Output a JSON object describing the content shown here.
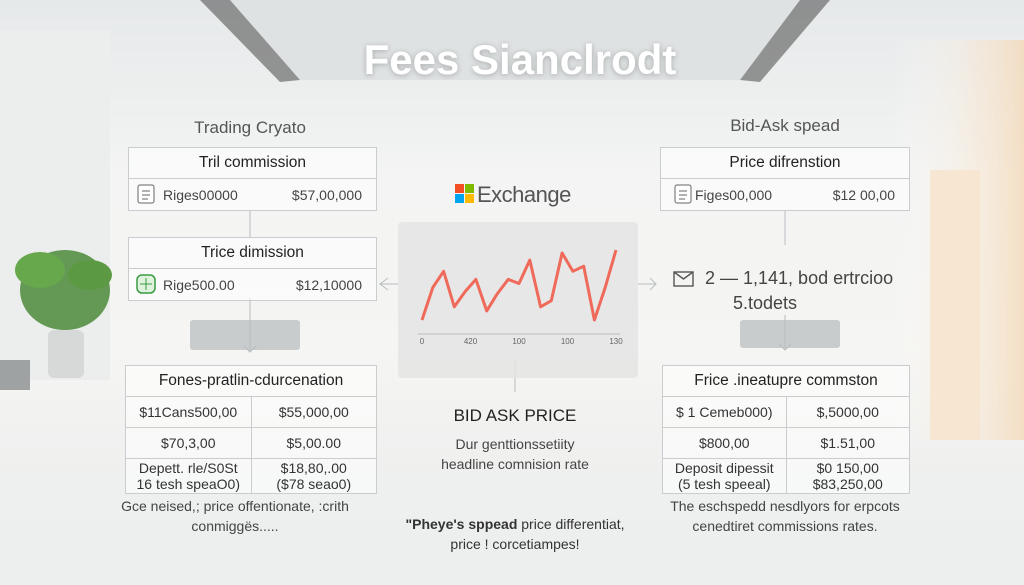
{
  "header": {
    "title": "Fees Sianclrodt"
  },
  "left": {
    "heading": "Trading Cryato",
    "box1": {
      "header": "Tril commission",
      "row": [
        "Riges00000",
        "$57,00,000"
      ]
    },
    "box2": {
      "header": "Trice dimission",
      "row": [
        "Rige500.00",
        "$12,10000"
      ]
    },
    "box3": {
      "header": "Fones-pratlin-cdurcenation",
      "rows": [
        [
          "$11Cans500,00",
          "$55,000,00"
        ],
        [
          "$70,3,00",
          "$5,00.00"
        ],
        [
          "Depett. rle/S0St\n16 tesh speaO0)",
          "$18,80,.00\n($78 seao0)"
        ]
      ]
    },
    "footer": "Gce neised,; price offentionate, :crith\nconmiggës....."
  },
  "center": {
    "logo": "Exchange",
    "chart": {
      "type": "line",
      "color": "#ef6a5a",
      "xticks": [
        "0",
        "420",
        "100",
        "100",
        "130"
      ],
      "values": [
        12,
        44,
        60,
        25,
        40,
        52,
        21,
        38,
        52,
        48,
        71,
        25,
        31,
        78,
        60,
        65,
        12,
        44,
        81
      ]
    },
    "heading": "BID ASK PRICE",
    "subtitle": "Dur genttionssetiity\nheadline comnision rate",
    "quote_bold": "\"Pheye's sppead",
    "quote_rest": " price differentiat,\nprice ! corcetiampes!"
  },
  "right": {
    "heading": "Bid-Ask spead",
    "box1": {
      "header": "Price difrenstion",
      "row": [
        "Figes00,000",
        "$12 00,00"
      ]
    },
    "note_line1": "2 — 1,141, bod ertrcioo",
    "note_line2": "5.todets",
    "box3": {
      "header": "Frice .ineatupre commston",
      "rows": [
        [
          "$ 1 Cemeb000)",
          "$,5000,00"
        ],
        [
          "$800,00",
          "$1.51,00"
        ],
        [
          "Deposit dipessit\n(5 tesh speeal)",
          "$0 150,00\n$83,250,00"
        ]
      ]
    },
    "footer": "The eschspedd nesdlyors for erpcots\ncenedtiret commissions rates."
  }
}
